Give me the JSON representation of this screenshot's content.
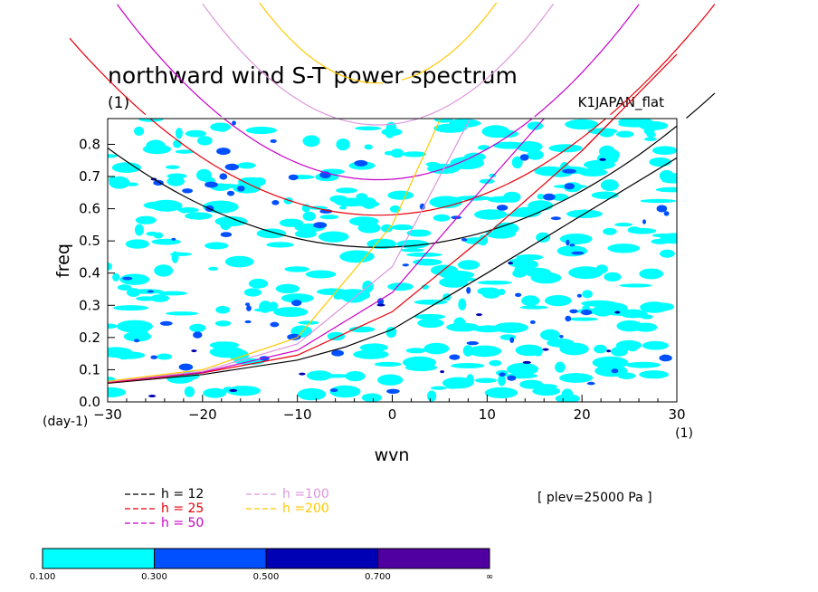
{
  "chart_data": {
    "type": "line",
    "title": "northward wind S-T power spectrum",
    "subtitle_left": "(1)",
    "subtitle_right": "K1JAPAN_flat",
    "xlabel": "wvn",
    "ylabel": "freq",
    "x_unit": "(1)",
    "y_unit": "(day-1)",
    "xlim": [
      -30,
      30
    ],
    "ylim": [
      0,
      0.88
    ],
    "x_ticks": [
      -30,
      -20,
      -10,
      0,
      10,
      20,
      30
    ],
    "x_tick_labels": [
      "−30",
      "−20",
      "−10",
      "0",
      "10",
      "20",
      "30"
    ],
    "y_ticks": [
      0.0,
      0.1,
      0.2,
      0.3,
      0.4,
      0.5,
      0.6,
      0.7,
      0.8
    ],
    "y_tick_labels": [
      "0.0",
      "0.1",
      "0.2",
      "0.3",
      "0.4",
      "0.5",
      "0.6",
      "0.7",
      "0.8"
    ],
    "annotation": "[ plev=25000 Pa ]",
    "colors": {
      "h12": "#000000",
      "h25": "#e8000b",
      "h50": "#c800c8",
      "h100": "#dc96dc",
      "h200": "#ffc800"
    },
    "series": [
      {
        "name": "h = 12",
        "color": "#000000",
        "kelvin": [
          [
            -30,
            0.058
          ],
          [
            -20,
            0.085
          ],
          [
            -10,
            0.13
          ],
          [
            -5,
            0.17
          ],
          [
            0,
            0.225
          ],
          [
            10,
            0.4
          ],
          [
            20,
            0.58
          ],
          [
            30,
            0.758
          ]
        ],
        "ig_min": 0.48,
        "ig_at_x30": 0.86
      },
      {
        "name": "h = 25",
        "color": "#e8000b",
        "kelvin": [
          [
            -30,
            0.06
          ],
          [
            -20,
            0.09
          ],
          [
            -10,
            0.145
          ],
          [
            0,
            0.28
          ],
          [
            10,
            0.52
          ],
          [
            20,
            0.78
          ],
          [
            30,
            1.08
          ]
        ],
        "ig_min": 0.58,
        "ig_at_xm30": 1.05
      },
      {
        "name": "h = 50",
        "color": "#c800c8",
        "kelvin": [
          [
            -30,
            0.062
          ],
          [
            -20,
            0.092
          ],
          [
            -10,
            0.16
          ],
          [
            0,
            0.34
          ],
          [
            10,
            0.68
          ],
          [
            16,
            0.88
          ]
        ],
        "ig_min": 0.69
      },
      {
        "name": "h =100",
        "color": "#dc96dc",
        "kelvin": [
          [
            -30,
            0.063
          ],
          [
            -20,
            0.095
          ],
          [
            -10,
            0.18
          ],
          [
            0,
            0.42
          ],
          [
            10,
            0.98
          ]
        ],
        "ig_min": 0.86
      },
      {
        "name": "h =200",
        "color": "#ffc800",
        "kelvin": [
          [
            -30,
            0.064
          ],
          [
            -20,
            0.1
          ],
          [
            -10,
            0.2
          ],
          [
            0,
            0.55
          ],
          [
            10,
            1.2
          ]
        ],
        "ig_min": 0.99
      }
    ],
    "contour_levels": [
      "0.100",
      "0.300",
      "0.500",
      "0.700",
      "∞"
    ],
    "contour_colors": [
      "#00ffff",
      "#0050ff",
      "#0000b4",
      "#5000a0"
    ]
  }
}
